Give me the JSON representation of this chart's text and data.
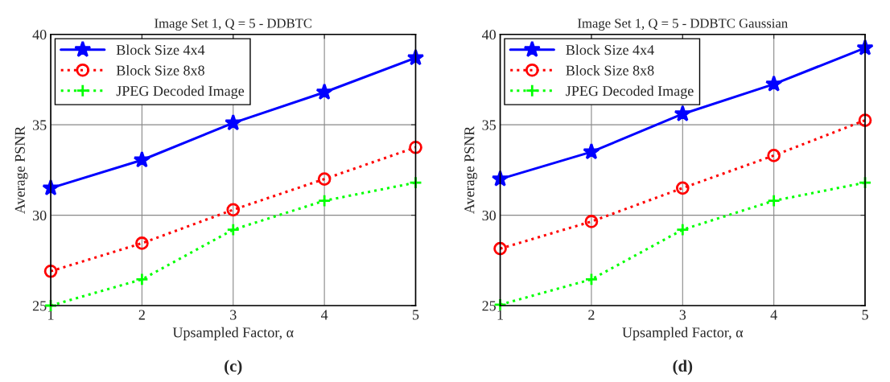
{
  "chart_data": [
    {
      "type": "line",
      "title": "Image Set 1, Q = 5 - DDBTC",
      "xlabel": "Upsampled Factor, α",
      "ylabel": "Average PSNR",
      "x": [
        1,
        2,
        3,
        4,
        5
      ],
      "series": [
        {
          "name": "Block Size 4x4",
          "color": "#0000ff",
          "marker": "star",
          "line_style": "solid",
          "values": [
            31.5,
            33.05,
            35.1,
            36.8,
            38.7
          ]
        },
        {
          "name": "Block Size 8x8",
          "color": "#ff0000",
          "marker": "circle",
          "line_style": "dotted",
          "values": [
            26.9,
            28.45,
            30.3,
            32.0,
            33.75
          ]
        },
        {
          "name": "JPEG Decoded Image",
          "color": "#00ff00",
          "marker": "cross",
          "line_style": "dotted",
          "values": [
            25.0,
            26.45,
            29.2,
            30.8,
            31.8
          ]
        }
      ],
      "xlim": [
        1,
        5
      ],
      "xticks": [
        1,
        2,
        3,
        4,
        5
      ],
      "ylim": [
        25,
        40
      ],
      "yticks": [
        25,
        30,
        35,
        40
      ],
      "grid": true,
      "legend": "top left",
      "annotations": [
        "(c)"
      ]
    },
    {
      "type": "line",
      "title": "Image Set 1, Q = 5 - DDBTC Gaussian",
      "xlabel": "Upsampled Factor, α",
      "ylabel": "Average PSNR",
      "x": [
        1,
        2,
        3,
        4,
        5
      ],
      "series": [
        {
          "name": "Block Size 4x4",
          "color": "#0000ff",
          "marker": "star",
          "line_style": "solid",
          "values": [
            32.0,
            33.5,
            35.6,
            37.25,
            39.25
          ]
        },
        {
          "name": "Block Size 8x8",
          "color": "#ff0000",
          "marker": "circle",
          "line_style": "dotted",
          "values": [
            28.15,
            29.65,
            31.5,
            33.3,
            35.25
          ]
        },
        {
          "name": "JPEG Decoded Image",
          "color": "#00ff00",
          "marker": "cross",
          "line_style": "dotted",
          "values": [
            25.05,
            26.45,
            29.2,
            30.8,
            31.8
          ]
        }
      ],
      "xlim": [
        1,
        5
      ],
      "xticks": [
        1,
        2,
        3,
        4,
        5
      ],
      "ylim": [
        25,
        40
      ],
      "yticks": [
        25,
        30,
        35,
        40
      ],
      "grid": true,
      "legend": "top left",
      "annotations": [
        "(d)"
      ]
    }
  ]
}
